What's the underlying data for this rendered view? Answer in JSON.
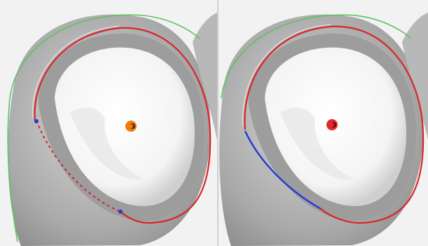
{
  "colors": {
    "background": "#000000",
    "viewport_bg": "#f2f2f2",
    "divider": "#cfcfcf",
    "tooth_surface": "#b4b4b4",
    "tooth_shadow": "#8e8e8e",
    "preparation_floor": "#f7f7f7",
    "boundary_green": "#5fc25f",
    "margin_line_red": "#d9252a",
    "margin_line_blue": "#2a35d6",
    "center_marker_left": "#ee7a10",
    "center_marker_right": "#e3262b"
  },
  "panels": [
    {
      "id": "left",
      "icons": [
        "margin-line-icon",
        "dashed-segment-icon",
        "control-point-icon",
        "center-marker-icon"
      ]
    },
    {
      "id": "right",
      "icons": [
        "margin-line-icon",
        "edited-segment-icon",
        "center-marker-icon"
      ]
    }
  ]
}
